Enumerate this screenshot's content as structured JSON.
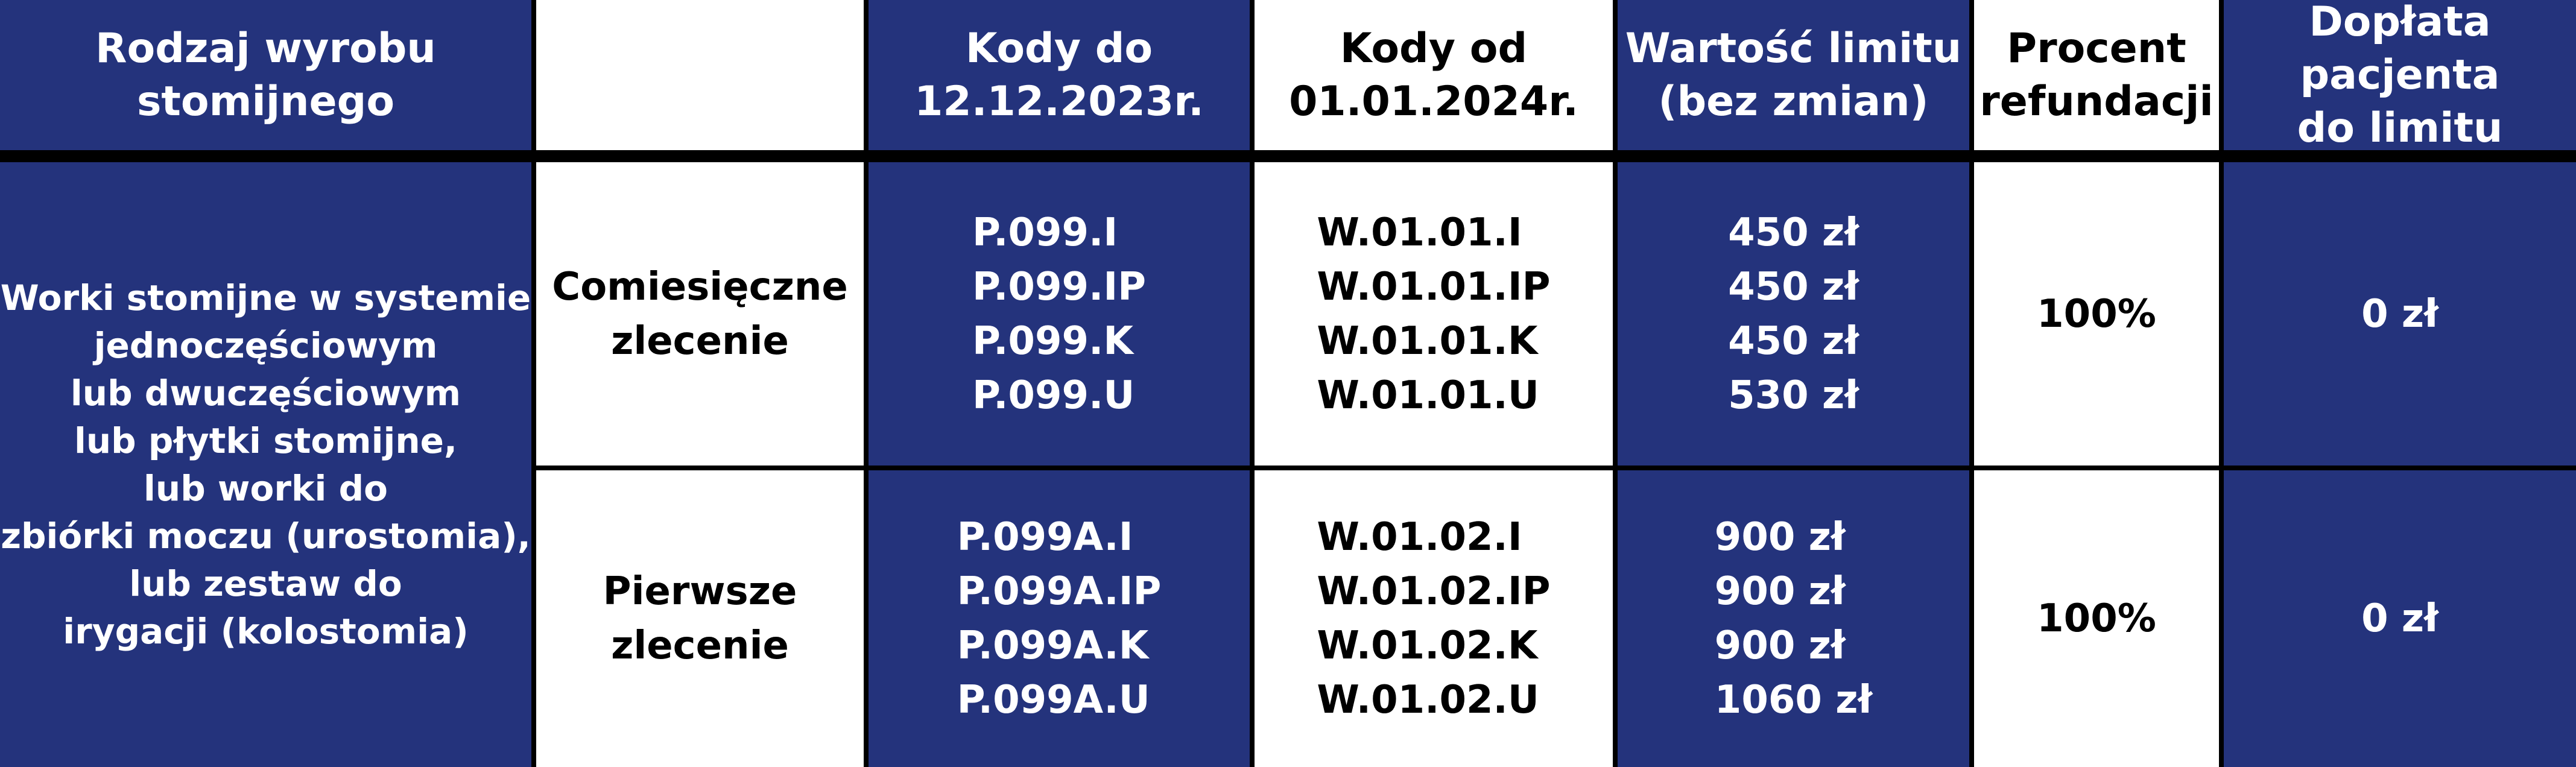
{
  "header": {
    "product_type": [
      "Rodzaj wyrobu",
      "stomijnego"
    ],
    "codes_until": [
      "Kody do",
      "12.12.2023r."
    ],
    "codes_from": [
      "Kody od",
      "01.01.2024r."
    ],
    "limit_value": [
      "Wartość limitu",
      "(bez zmian)"
    ],
    "refund_percent": [
      "Procent",
      "refundacji"
    ],
    "patient_copay": [
      "Dopłata pacjenta",
      "do limitu"
    ]
  },
  "product_description": [
    "Worki stomijne w systemie",
    "jednoczęściowym",
    "lub dwuczęściowym",
    "lub płytki stomijne,",
    "lub worki do",
    "zbiórki moczu (urostomia),",
    "lub zestaw do",
    "irygacji (kolostomia)"
  ],
  "rows": [
    {
      "order_type": [
        "Comiesięczne",
        "zlecenie"
      ],
      "codes_until": [
        "P.099.I",
        "P.099.IP",
        "P.099.K",
        "P.099.U"
      ],
      "codes_from": [
        "W.01.01.I",
        "W.01.01.IP",
        "W.01.01.K",
        "W.01.01.U"
      ],
      "limits": [
        "450 zł",
        "450 zł",
        "450 zł",
        "530 zł"
      ],
      "refund": [
        "100%"
      ],
      "copay": [
        "0 zł"
      ]
    },
    {
      "order_type": [
        "Pierwsze",
        "zlecenie"
      ],
      "codes_until": [
        "P.099A.I",
        "P.099A.IP",
        "P.099A.K",
        "P.099A.U"
      ],
      "codes_from": [
        "W.01.02.I",
        "W.01.02.IP",
        "W.01.02.K",
        "W.01.02.U"
      ],
      "limits": [
        "900 zł",
        "900 zł",
        "900 zł",
        "1060 zł"
      ],
      "refund": [
        "100%"
      ],
      "copay": [
        "0 zł"
      ]
    }
  ]
}
